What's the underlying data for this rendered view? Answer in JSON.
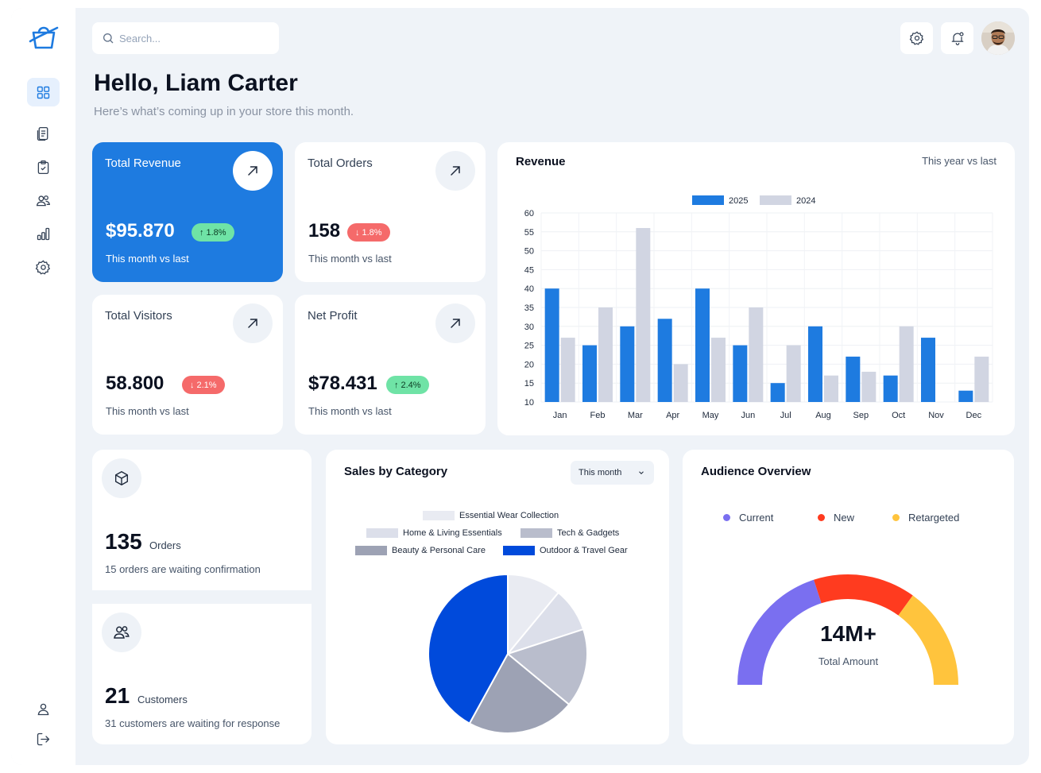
{
  "search": {
    "placeholder": "Search..."
  },
  "user": {
    "greeting": "Hello, Liam Carter",
    "subtitle": "Here’s what’s coming up in your store this month."
  },
  "stats": [
    {
      "label": "Total Revenue",
      "value": "$95.870",
      "change": "1.8%",
      "direction": "up",
      "foot": "This month vs last"
    },
    {
      "label": "Total Orders",
      "value": "158",
      "change": "1.8%",
      "direction": "down",
      "foot": "This month vs last"
    },
    {
      "label": "Total Visitors",
      "value": "58.800",
      "change": "2.1%",
      "direction": "down",
      "foot": "This month vs last"
    },
    {
      "label": "Net Profit",
      "value": "$78.431",
      "change": "2.4%",
      "direction": "up",
      "foot": "This month vs last"
    }
  ],
  "revenue": {
    "title": "Revenue",
    "subtitle": "This year vs last"
  },
  "orders_card": {
    "count": "135",
    "unit": "Orders",
    "desc": "15 orders are waiting confirmation"
  },
  "customers_card": {
    "count": "21",
    "unit": "Customers",
    "desc": "31 customers are waiting for response"
  },
  "sales": {
    "title": "Sales by Category",
    "period": "This month"
  },
  "audience": {
    "title": "Audience Overview",
    "legend": [
      {
        "label": "Current",
        "color": "#7a6ff0"
      },
      {
        "label": "New",
        "color": "#ff3b1f"
      },
      {
        "label": "Retargeted",
        "color": "#ffc43d"
      }
    ],
    "total_value": "14M+",
    "total_label": "Total Amount"
  },
  "colors": {
    "primary": "#1e7be0",
    "series_2024": "#d1d5e2",
    "up": "#6fe3a6",
    "down": "#f56a6a"
  },
  "chart_data": [
    {
      "type": "bar",
      "title": "Revenue",
      "categories": [
        "Jan",
        "Feb",
        "Mar",
        "Apr",
        "May",
        "Jun",
        "Jul",
        "Aug",
        "Sep",
        "Oct",
        "Nov",
        "Dec"
      ],
      "series": [
        {
          "name": "2025",
          "color": "#1e7be0",
          "values": [
            40,
            25,
            30,
            32,
            40,
            25,
            15,
            30,
            22,
            17,
            27,
            13
          ]
        },
        {
          "name": "2024",
          "color": "#d1d5e2",
          "values": [
            27,
            35,
            56,
            20,
            27,
            35,
            25,
            17,
            18,
            30,
            10,
            22
          ]
        }
      ],
      "ylim": [
        10,
        60
      ],
      "yticks": [
        10,
        15,
        20,
        25,
        30,
        35,
        40,
        45,
        50,
        55,
        60
      ],
      "legend": "top-center",
      "grid": true
    },
    {
      "type": "pie",
      "title": "Sales by Category",
      "categories": [
        "Essential Wear Collection",
        "Home & Living Essentials",
        "Tech & Gadgets",
        "Beauty & Personal Care",
        "Outdoor & Travel Gear"
      ],
      "values": [
        11,
        9,
        16,
        22,
        42
      ],
      "colors": [
        "#e9ebf2",
        "#dcdfea",
        "#b9bdcc",
        "#9da2b4",
        "#004adb"
      ],
      "legend": "top"
    },
    {
      "type": "pie",
      "title": "Audience Overview",
      "categories": [
        "Current",
        "New",
        "Retargeted"
      ],
      "values": [
        40,
        30,
        30
      ],
      "colors": [
        "#7a6ff0",
        "#ff3b1f",
        "#ffc43d"
      ]
    }
  ]
}
